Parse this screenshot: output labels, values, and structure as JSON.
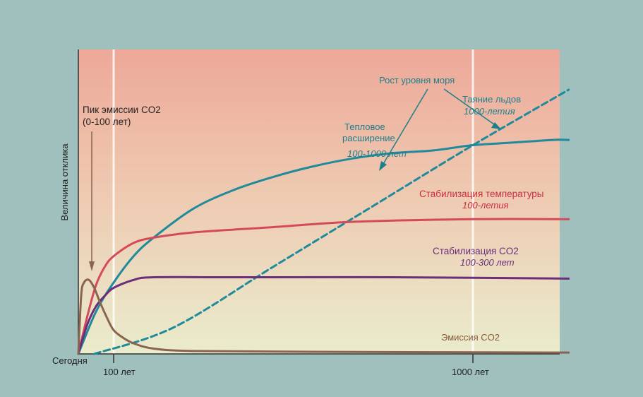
{
  "chart_data": {
    "type": "line",
    "ylabel": "Величина отклика",
    "x_origin_label": "Сегодня",
    "x_ticks": [
      {
        "x": 100,
        "label": "100 лет"
      },
      {
        "x": 1000,
        "label": "1000 лет"
      }
    ],
    "series": [
      {
        "key": "sea_ice",
        "color": "#1e8a9a",
        "dashed": true,
        "points": [
          [
            45,
            0.0
          ],
          [
            250,
            0.1
          ],
          [
            500,
            0.33
          ],
          [
            750,
            0.56
          ],
          [
            1000,
            0.79
          ],
          [
            1240,
            1.0
          ]
        ]
      },
      {
        "key": "thermal",
        "color": "#1e8a9a",
        "dashed": false,
        "points": [
          [
            0,
            0.0
          ],
          [
            50,
            0.16
          ],
          [
            100,
            0.27
          ],
          [
            150,
            0.37
          ],
          [
            200,
            0.44
          ],
          [
            300,
            0.55
          ],
          [
            400,
            0.62
          ],
          [
            500,
            0.67
          ],
          [
            600,
            0.71
          ],
          [
            700,
            0.74
          ],
          [
            800,
            0.76
          ],
          [
            900,
            0.77
          ],
          [
            1000,
            0.79
          ],
          [
            1100,
            0.8
          ],
          [
            1200,
            0.81
          ],
          [
            1240,
            0.81
          ]
        ]
      },
      {
        "key": "temperature",
        "color": "#d44a5a",
        "dashed": false,
        "points": [
          [
            0,
            0.0
          ],
          [
            25,
            0.14
          ],
          [
            50,
            0.26
          ],
          [
            75,
            0.33
          ],
          [
            100,
            0.37
          ],
          [
            150,
            0.42
          ],
          [
            200,
            0.44
          ],
          [
            300,
            0.46
          ],
          [
            500,
            0.48
          ],
          [
            700,
            0.5
          ],
          [
            1000,
            0.51
          ],
          [
            1240,
            0.51
          ]
        ]
      },
      {
        "key": "co2",
        "color": "#6a2e7a",
        "dashed": false,
        "points": [
          [
            0,
            0.0
          ],
          [
            25,
            0.11
          ],
          [
            50,
            0.18
          ],
          [
            75,
            0.22
          ],
          [
            100,
            0.25
          ],
          [
            150,
            0.28
          ],
          [
            200,
            0.29
          ],
          [
            400,
            0.29
          ],
          [
            800,
            0.29
          ],
          [
            1240,
            0.285
          ]
        ]
      },
      {
        "key": "emission",
        "color": "#8a6450",
        "dashed": false,
        "points": [
          [
            0,
            0.0
          ],
          [
            8,
            0.22
          ],
          [
            16,
            0.27
          ],
          [
            30,
            0.28
          ],
          [
            45,
            0.25
          ],
          [
            60,
            0.2
          ],
          [
            80,
            0.14
          ],
          [
            100,
            0.09
          ],
          [
            125,
            0.06
          ],
          [
            150,
            0.04
          ],
          [
            200,
            0.02
          ],
          [
            300,
            0.011
          ],
          [
            600,
            0.008
          ],
          [
            1240,
            0.005
          ]
        ]
      }
    ],
    "annotations": {
      "peak_line1": "Пик эмиссии CO2",
      "peak_line2": "(0-100 лет)",
      "sea_level": "Рост уровня моря",
      "ice_title": "Таяние льдов",
      "ice_sub": "1000-летия",
      "thermal_line1": "Тепловое",
      "thermal_line2": "расширение",
      "thermal_sub": "100-1000 лет",
      "temp_title": "Стабилизация температуры",
      "temp_sub": "100-летия",
      "co2_title": "Стабилизация CO2",
      "co2_sub": "100-300 лет",
      "emission_title": "Эмиссия CO2"
    },
    "colors": {
      "page_bg": "#9fc0bc",
      "plot_top": "#eda898",
      "plot_mid": "#eec8b0",
      "plot_bottom": "#eaeccc",
      "axis": "#333333",
      "gridline": "#ffffff",
      "arrow": "#1e7f8c",
      "peak_arrow": "#8a6450",
      "text": "#222222",
      "teal_text": "#1e7f8c",
      "red_text": "#c83040",
      "purple_text": "#6a2e7a",
      "brown_text": "#8a5a3a"
    }
  }
}
